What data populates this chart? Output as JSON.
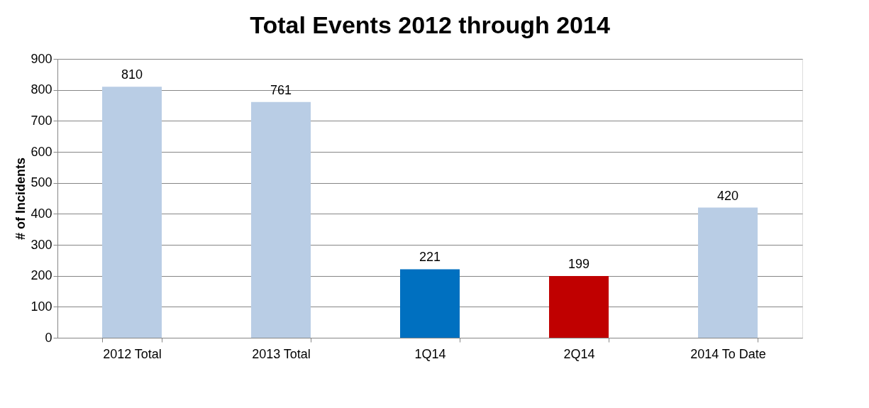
{
  "chart_data": {
    "type": "bar",
    "title": "Total Events 2012 through 2014",
    "ylabel": "# of Incidents",
    "categories": [
      "2012 Total",
      "2013 Total",
      "1Q14",
      "2Q14",
      "2014 To Date"
    ],
    "values": [
      810,
      761,
      221,
      199,
      420
    ],
    "colors": [
      "#b9cde5",
      "#b9cde5",
      "#0070c0",
      "#c00000",
      "#b9cde5"
    ],
    "ylim": [
      0,
      900
    ],
    "yticks": [
      0,
      100,
      200,
      300,
      400,
      500,
      600,
      700,
      800,
      900
    ],
    "grid": "y",
    "data_labels": true
  }
}
